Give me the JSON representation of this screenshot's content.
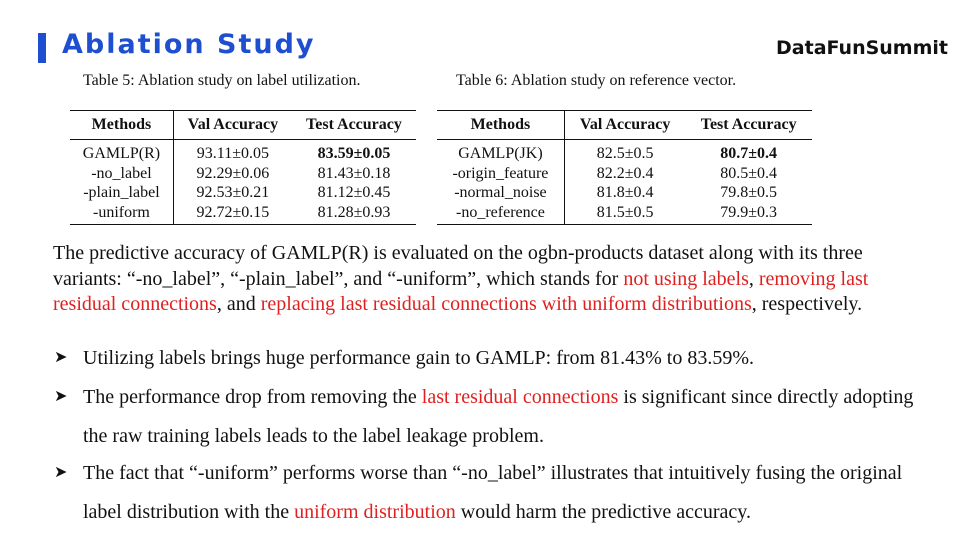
{
  "header": {
    "title": "Ablation Study",
    "brand": "DataFunSummit"
  },
  "table5": {
    "caption": "Table 5: Ablation study on label utilization.",
    "headers": [
      "Methods",
      "Val Accuracy",
      "Test Accuracy"
    ],
    "rows": [
      [
        "GAMLP(R)",
        "93.11±0.05",
        "83.59±0.05"
      ],
      [
        "-no_label",
        "92.29±0.06",
        "81.43±0.18"
      ],
      [
        "-plain_label",
        "92.53±0.21",
        "81.12±0.45"
      ],
      [
        "-uniform",
        "92.72±0.15",
        "81.28±0.93"
      ]
    ]
  },
  "table6": {
    "caption": "Table 6: Ablation study on reference vector.",
    "headers": [
      "Methods",
      "Val Accuracy",
      "Test Accuracy"
    ],
    "rows": [
      [
        "GAMLP(JK)",
        "82.5±0.5",
        "80.7±0.4"
      ],
      [
        "-origin_feature",
        "82.2±0.4",
        "80.5±0.4"
      ],
      [
        "-normal_noise",
        "81.8±0.4",
        "79.8±0.5"
      ],
      [
        "-no_reference",
        "81.5±0.5",
        "79.9±0.3"
      ]
    ]
  },
  "paragraph": {
    "p1": "The predictive accuracy of GAMLP(R) is evaluated on the ogbn-products dataset along with its three variants: “-no_label”, “-plain_label”, and “-uniform”, which stands for ",
    "hl1": "not using labels",
    "p2": ", ",
    "hl2": "removing last residual connections",
    "p3": ", and ",
    "hl3": "replacing last residual connections with uniform distributions",
    "p4": ", respectively."
  },
  "bullets": {
    "b1": "Utilizing labels brings huge performance gain to GAMLP: from 81.43% to 83.59%.",
    "b2_pre": "The performance drop from removing the ",
    "b2_hl": "last residual connections",
    "b2_post": " is significant since directly adopting the raw training labels leads to the label leakage problem.",
    "b3_pre": "The fact that “-uniform” performs worse than “-no_label” illustrates that intuitively fusing the original label distribution with the ",
    "b3_hl": "uniform distribution",
    "b3_post": " would harm the predictive accuracy."
  },
  "colors": {
    "title": "#1f4fd1",
    "highlight": "#e02020"
  },
  "icons": {
    "bullet": "arrowhead-icon"
  }
}
